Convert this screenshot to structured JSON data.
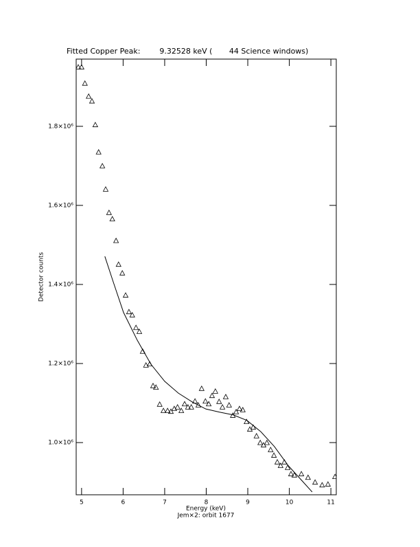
{
  "chart_data": {
    "type": "scatter",
    "title": "Fitted Copper Peak:        9.32528 keV (       44 Science windows)",
    "x_label": "Energy (keV)",
    "subtitle": "Jem×2: orbit 1677",
    "y_label": "Detector counts",
    "xlim": [
      4.87,
      11.13
    ],
    "ylim": [
      868000,
      1970000
    ],
    "xticks": [
      5,
      6,
      7,
      8,
      9,
      10,
      11
    ],
    "yticks": [
      {
        "value": 1000000,
        "label": "1.0×10⁶"
      },
      {
        "value": 1200000,
        "label": "1.2×10⁶"
      },
      {
        "value": 1400000,
        "label": "1.4×10⁶"
      },
      {
        "value": 1600000,
        "label": "1.6×10⁶"
      },
      {
        "value": 1800000,
        "label": "1.8×10⁶"
      }
    ],
    "series": [
      {
        "type": "scatter",
        "marker": "triangle",
        "color": "#000000",
        "x": [
          4.92,
          5.0,
          5.08,
          5.17,
          5.25,
          5.33,
          5.41,
          5.5,
          5.58,
          5.66,
          5.74,
          5.83,
          5.89,
          5.98,
          6.06,
          6.14,
          6.22,
          6.31,
          6.39,
          6.47,
          6.55,
          6.64,
          6.72,
          6.79,
          6.88,
          6.97,
          7.07,
          7.15,
          7.23,
          7.31,
          7.4,
          7.48,
          7.56,
          7.64,
          7.73,
          7.81,
          7.89,
          7.98,
          8.06,
          8.14,
          8.22,
          8.31,
          8.39,
          8.47,
          8.55,
          8.64,
          8.72,
          8.8,
          8.88,
          8.97,
          9.05,
          9.13,
          9.21,
          9.3,
          9.38,
          9.46,
          9.55,
          9.63,
          9.71,
          9.79,
          9.88,
          9.96,
          10.04,
          10.12,
          10.29,
          10.45,
          10.62,
          10.79,
          10.93,
          11.1
        ],
        "values": [
          1949000,
          1949000,
          1908000,
          1875000,
          1863000,
          1803000,
          1734000,
          1699000,
          1640000,
          1581000,
          1565000,
          1510000,
          1450000,
          1428000,
          1372000,
          1330000,
          1322000,
          1290000,
          1280000,
          1230000,
          1195000,
          1198000,
          1143000,
          1139000,
          1096000,
          1080000,
          1080000,
          1078000,
          1085000,
          1089000,
          1080000,
          1097000,
          1089000,
          1089000,
          1104000,
          1094000,
          1136000,
          1104000,
          1097000,
          1118000,
          1129000,
          1103000,
          1089000,
          1115000,
          1094000,
          1068000,
          1077000,
          1085000,
          1082000,
          1052000,
          1033000,
          1038000,
          1016000,
          999000,
          993000,
          999000,
          981000,
          967000,
          950000,
          941000,
          950000,
          936000,
          920000,
          917000,
          920000,
          911000,
          899000,
          892000,
          894000,
          913000
        ]
      },
      {
        "type": "line",
        "color": "#000000",
        "x": [
          5.56,
          5.76,
          6.01,
          6.34,
          6.67,
          7.0,
          7.33,
          7.66,
          7.99,
          8.32,
          8.65,
          8.98,
          9.31,
          9.64,
          9.98,
          10.31,
          10.55
        ],
        "values": [
          1471000,
          1407000,
          1329000,
          1259000,
          1198000,
          1155000,
          1125000,
          1103000,
          1085000,
          1077000,
          1070000,
          1056000,
          1028000,
          990000,
          941000,
          903000,
          875000
        ]
      }
    ]
  }
}
